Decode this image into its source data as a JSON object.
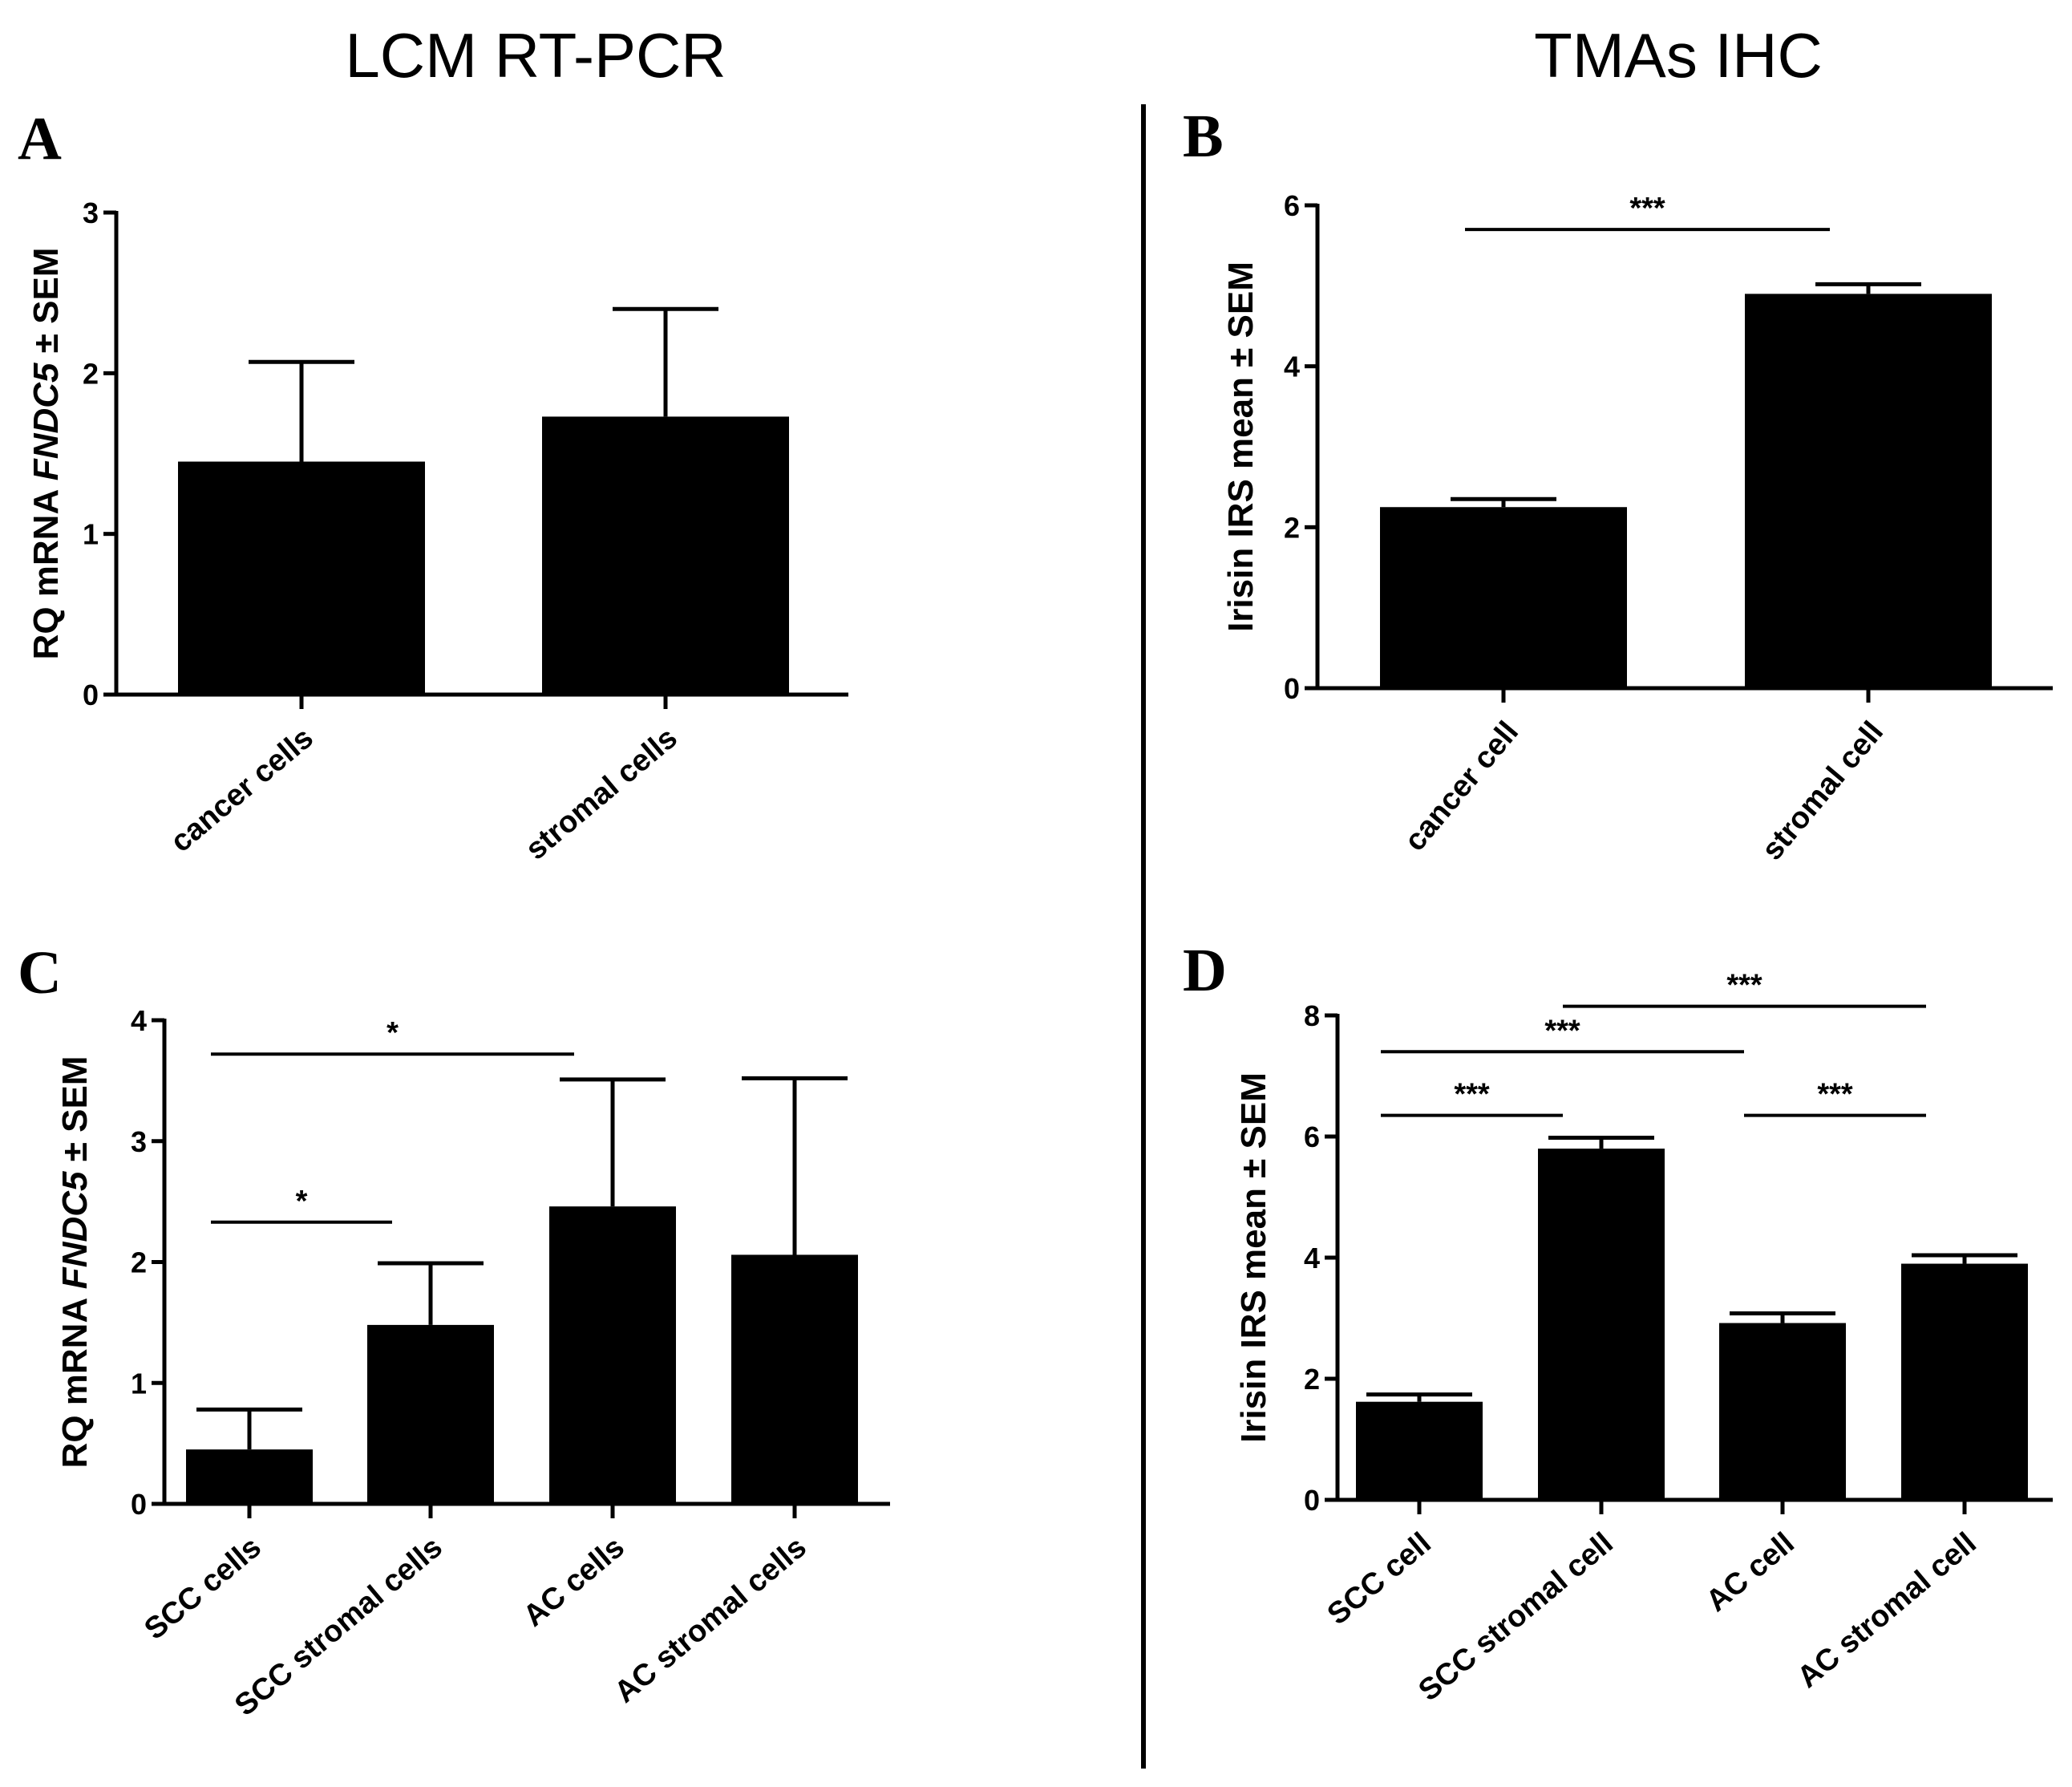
{
  "headers": {
    "left": "LCM RT-PCR",
    "right": "TMAs IHC"
  },
  "chart_data": [
    {
      "panel": "A",
      "type": "bar",
      "ylabel_parts": [
        "RQ mRNA ",
        "FNDC5",
        " ± SEM"
      ],
      "ylim": [
        0,
        3
      ],
      "yticks": [
        0,
        1,
        2,
        3
      ],
      "categories": [
        "cancer cells",
        "stromal cells"
      ],
      "values": [
        1.45,
        1.73
      ],
      "errors": [
        0.62,
        0.67
      ],
      "significance": []
    },
    {
      "panel": "B",
      "type": "bar",
      "ylabel_parts": [
        "Irisin IRS mean ± SEM"
      ],
      "ylim": [
        0,
        6
      ],
      "yticks": [
        0,
        2,
        4,
        6
      ],
      "categories": [
        "cancer cell",
        "stromal cell"
      ],
      "values": [
        2.25,
        4.9
      ],
      "errors": [
        0.1,
        0.12
      ],
      "significance": [
        {
          "from": 0,
          "to": 1,
          "y": 5.7,
          "label": "***"
        }
      ]
    },
    {
      "panel": "C",
      "type": "bar",
      "ylabel_parts": [
        "RQ mRNA ",
        "FNDC5",
        " ± SEM"
      ],
      "ylim": [
        0,
        4
      ],
      "yticks": [
        0,
        1,
        2,
        3,
        4
      ],
      "categories": [
        "SCC cells",
        "SCC stromal cells",
        "AC cells",
        "AC stromal cells"
      ],
      "values": [
        0.45,
        1.48,
        2.46,
        2.06
      ],
      "errors": [
        0.33,
        0.51,
        1.05,
        1.46
      ],
      "significance": [
        {
          "from": 0,
          "to": 2,
          "y": 3.72,
          "label": "*"
        },
        {
          "from": 0,
          "to": 1,
          "y": 2.33,
          "label": "*"
        }
      ]
    },
    {
      "panel": "D",
      "type": "bar",
      "ylabel_parts": [
        "Irisin IRS mean ± SEM"
      ],
      "ylim": [
        0,
        8
      ],
      "yticks": [
        0,
        2,
        4,
        6,
        8
      ],
      "categories": [
        "SCC cell",
        "SCC stromal cell",
        "AC cell",
        "AC stromal cell"
      ],
      "values": [
        1.62,
        5.8,
        2.92,
        3.9
      ],
      "errors": [
        0.12,
        0.18,
        0.16,
        0.14
      ],
      "significance": [
        {
          "from": 1,
          "to": 3,
          "y": 8.15,
          "label": "***"
        },
        {
          "from": 0,
          "to": 2,
          "y": 7.4,
          "label": "***"
        },
        {
          "from": 0,
          "to": 1,
          "y": 6.35,
          "label": "***"
        },
        {
          "from": 2,
          "to": 3,
          "y": 6.35,
          "label": "***"
        }
      ]
    }
  ]
}
